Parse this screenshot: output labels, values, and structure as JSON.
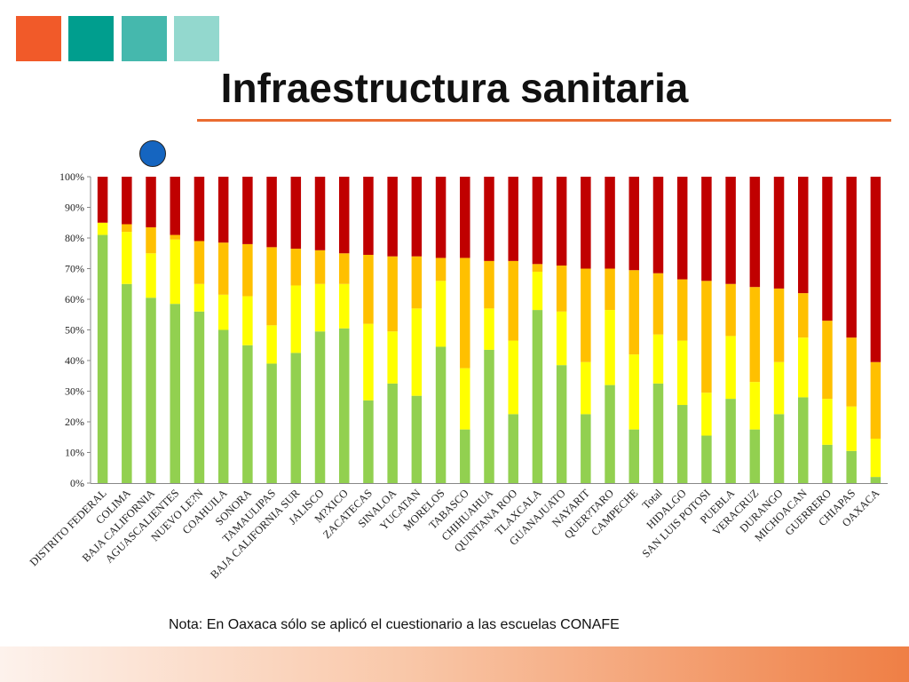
{
  "header": {
    "squares": [
      "#f15a29",
      "#009e8e",
      "#45b8ad",
      "#93d8ce"
    ],
    "title": "Infraestructura sanitaria",
    "rule_color": "#ea6b30"
  },
  "note": "Nota: En Oaxaca sólo se aplicó el cuestionario a las escuelas CONAFE",
  "chart_data": {
    "type": "bar",
    "stacked": true,
    "percent": true,
    "categories": [
      "DISTRITO FEDERAL",
      "COLIMA",
      "BAJA CALIFORNIA",
      "AGUASCALIENTES",
      "NUEVO LEÓN",
      "COAHUILA",
      "SONORA",
      "TAMAULIPAS",
      "BAJA CALIFORNIA SUR",
      "JALISCO",
      "MÉXICO",
      "ZACATECAS",
      "SINALOA",
      "YUCATÁN",
      "MORELOS",
      "TABASCO",
      "CHIHUAHUA",
      "QUINTANA ROO",
      "TLAXCALA",
      "GUANAJUATO",
      "NAYARIT",
      "QUERÉTARO",
      "CAMPECHE",
      "Total",
      "HIDALGO",
      "SAN LUIS POTOSÍ",
      "PUEBLA",
      "VERACRUZ",
      "DURANGO",
      "MICHOACÁN",
      "GUERRERO",
      "CHIAPAS",
      "OAXACA"
    ],
    "category_labels": [
      "DISTRITO FEDERAL",
      "COLIMA",
      "BAJA CALIFORNIA",
      "AGUASCALIENTES",
      "NUEVO LE?N",
      "COAHUILA",
      "SONORA",
      "TAMAULIPAS",
      "BAJA CALIFORNIA SUR",
      "JALISCO",
      "M?XICO",
      "ZACATECAS",
      "SINALOA",
      "YUCATAN",
      "MORELOS",
      "TABASCO",
      "CHIHUAHUA",
      "QUINTANA ROO",
      "TLAXCALA",
      "GUANAJUATO",
      "NAYARIT",
      "QUER?TARO",
      "CAMPECHE",
      "Total",
      "HIDALGO",
      "SAN LUIS POTOSI",
      "PUEBLA",
      "VERACRUZ",
      "DURANGO",
      "MICHOACAN",
      "GUERRERO",
      "CHIAPAS",
      "OAXACA"
    ],
    "series": [
      {
        "color": "#92d050",
        "values": [
          81,
          65,
          60.5,
          58.5,
          56,
          50,
          45,
          39,
          42.5,
          49.5,
          50.5,
          27,
          32.5,
          28.5,
          44.5,
          17.5,
          43.5,
          22.5,
          56.5,
          38.5,
          22.5,
          32,
          17.5,
          32.5,
          25.5,
          15.5,
          27.5,
          17.5,
          22.5,
          28,
          12.5,
          10.5,
          2
        ]
      },
      {
        "color": "#ffff00",
        "values": [
          4,
          17,
          14.5,
          21,
          9,
          11.5,
          16,
          12.5,
          22,
          15.5,
          14.5,
          25,
          17,
          28.5,
          21.5,
          20,
          13.5,
          24,
          12.5,
          17.5,
          17,
          24.5,
          24.5,
          16,
          21,
          14,
          20.5,
          15.5,
          17,
          19.5,
          15,
          14.5,
          12.5
        ]
      },
      {
        "color": "#ffc000",
        "values": [
          0,
          2.5,
          8.5,
          1.5,
          14,
          17,
          17,
          25.5,
          12,
          11,
          10,
          22.5,
          24.5,
          17,
          7.5,
          36,
          15.5,
          26,
          2.5,
          15,
          30.5,
          13.5,
          27.5,
          20,
          20,
          36.5,
          17,
          31,
          24,
          14.5,
          25.5,
          22.5,
          25
        ]
      },
      {
        "color": "#c00000",
        "values": [
          15,
          15.5,
          16.5,
          19,
          21,
          21.5,
          22,
          23,
          23.5,
          24,
          25,
          25.5,
          26,
          26,
          26.5,
          26.5,
          27.5,
          27.5,
          28.5,
          29,
          30,
          30,
          30.5,
          31.5,
          33.5,
          34,
          35,
          36,
          36.5,
          38,
          47,
          52.5,
          60.5
        ]
      }
    ],
    "yticks": [
      "0%",
      "10%",
      "20%",
      "30%",
      "40%",
      "50%",
      "60%",
      "70%",
      "80%",
      "90%",
      "100%"
    ],
    "ylim": [
      0,
      100
    ]
  }
}
